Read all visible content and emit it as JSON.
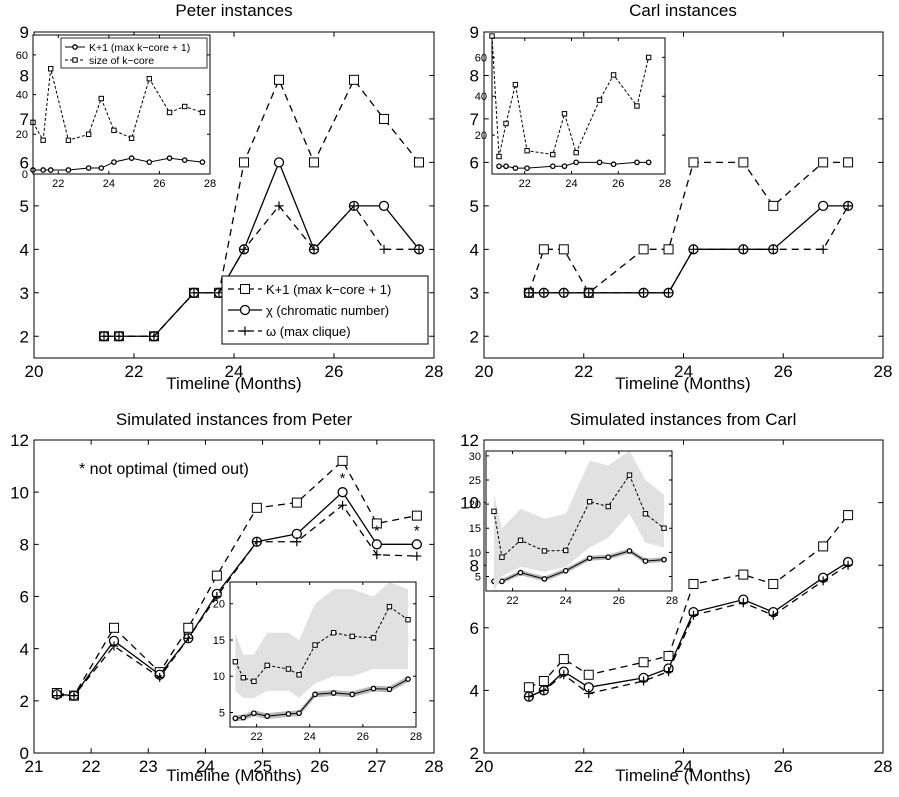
{
  "chart_data": [
    {
      "type": "line",
      "title": "Peter instances",
      "xlabel": "Timeline (Months)",
      "ylabel": "",
      "xlim": [
        20,
        28
      ],
      "ylim": [
        1.5,
        9
      ],
      "xticks": [
        20,
        22,
        24,
        26,
        28
      ],
      "yticks": [
        2,
        3,
        4,
        5,
        6,
        7,
        8,
        9
      ],
      "legend": {
        "position": "bottom-right",
        "entries": [
          "K+1 (max k−core + 1)",
          "χ (chromatic number)",
          "ω (max clique)"
        ]
      },
      "series": [
        {
          "name": "K+1 (max k−core + 1)",
          "style": "dashed",
          "marker": "square",
          "x": [
            21.4,
            21.7,
            22.4,
            23.2,
            23.7,
            24.2,
            24.9,
            25.6,
            26.4,
            27.0,
            27.7
          ],
          "y": [
            2,
            2,
            2,
            3,
            3,
            6,
            7.9,
            6,
            7.9,
            7,
            6
          ]
        },
        {
          "name": "χ (chromatic number)",
          "style": "solid",
          "marker": "circle",
          "x": [
            21.4,
            21.7,
            22.4,
            23.2,
            23.7,
            24.2,
            24.9,
            25.6,
            26.4,
            27.0,
            27.7
          ],
          "y": [
            2,
            2,
            2,
            3,
            3,
            4,
            6,
            4,
            5,
            5,
            4
          ]
        },
        {
          "name": "ω (max clique)",
          "style": "dashed",
          "marker": "plus",
          "x": [
            21.4,
            21.7,
            22.4,
            23.2,
            23.7,
            24.2,
            24.9,
            25.6,
            26.4,
            27.0,
            27.7
          ],
          "y": [
            2,
            2,
            2,
            3,
            3,
            4,
            5,
            4,
            5,
            4,
            4
          ]
        }
      ],
      "inset": {
        "xlim": [
          21,
          28
        ],
        "ylim": [
          0,
          70
        ],
        "xticks": [
          22,
          24,
          26,
          28
        ],
        "yticks": [
          0,
          20,
          40,
          60
        ],
        "legend": [
          "K+1 (max k−core + 1)",
          "size of k−core"
        ],
        "series": [
          {
            "name": "K+1 (max k−core + 1)",
            "style": "solid",
            "marker": "circle",
            "x": [
              21,
              21.4,
              21.7,
              22.4,
              23.2,
              23.7,
              24.2,
              24.9,
              25.6,
              26.4,
              27.0,
              27.7
            ],
            "y": [
              2,
              2,
              2,
              2,
              3,
              3,
              6,
              8,
              6,
              8,
              7,
              6
            ]
          },
          {
            "name": "size of k−core",
            "style": "dashed",
            "marker": "square",
            "x": [
              21,
              21.4,
              21.7,
              22.4,
              23.2,
              23.7,
              24.2,
              24.9,
              25.6,
              26.4,
              27.0,
              27.7
            ],
            "y": [
              26,
              17,
              53,
              17,
              20,
              38,
              22,
              18,
              48,
              31,
              34,
              31
            ]
          }
        ]
      }
    },
    {
      "type": "line",
      "title": "Carl instances",
      "xlabel": "Timeline (Months)",
      "ylabel": "",
      "xlim": [
        20,
        28
      ],
      "ylim": [
        1.5,
        9
      ],
      "xticks": [
        20,
        22,
        24,
        26,
        28
      ],
      "yticks": [
        2,
        3,
        4,
        5,
        6,
        7,
        8,
        9
      ],
      "series": [
        {
          "name": "K+1 (max k−core + 1)",
          "style": "dashed",
          "marker": "square",
          "x": [
            20.9,
            21.2,
            21.6,
            22.1,
            23.2,
            23.7,
            24.2,
            25.2,
            25.8,
            26.8,
            27.3
          ],
          "y": [
            3,
            4,
            4,
            3,
            4,
            4,
            6,
            6,
            5,
            6,
            6
          ]
        },
        {
          "name": "χ (chromatic number)",
          "style": "solid",
          "marker": "circle",
          "x": [
            20.9,
            21.2,
            21.6,
            22.1,
            23.2,
            23.7,
            24.2,
            25.2,
            25.8,
            26.8,
            27.3
          ],
          "y": [
            3,
            3,
            3,
            3,
            3,
            3,
            4,
            4,
            4,
            5,
            5
          ]
        },
        {
          "name": "ω (max clique)",
          "style": "dashed",
          "marker": "plus",
          "x": [
            20.9,
            21.2,
            21.6,
            22.1,
            23.2,
            23.7,
            24.2,
            25.2,
            25.8,
            26.8,
            27.3
          ],
          "y": [
            3,
            3,
            3,
            3,
            3,
            3,
            4,
            4,
            4,
            4,
            5
          ]
        }
      ],
      "inset": {
        "xlim": [
          20.6,
          28
        ],
        "ylim": [
          0,
          70
        ],
        "xticks": [
          22,
          24,
          26,
          28
        ],
        "yticks": [
          20,
          40,
          60
        ],
        "series": [
          {
            "name": "K+1 (max k−core + 1)",
            "style": "solid",
            "marker": "circle",
            "x": [
              20.9,
              21.2,
              21.6,
              22.1,
              23.2,
              23.7,
              24.2,
              25.2,
              25.8,
              26.8,
              27.3
            ],
            "y": [
              4,
              4,
              3,
              3,
              4,
              4,
              6,
              6,
              5,
              6,
              6
            ]
          },
          {
            "name": "size of k−core",
            "style": "dashed",
            "marker": "square",
            "x": [
              20.6,
              20.9,
              21.2,
              21.6,
              22.1,
              23.2,
              23.7,
              24.2,
              25.2,
              25.8,
              26.8,
              27.3
            ],
            "y": [
              71,
              9,
              26,
              46,
              12,
              10,
              31,
              11,
              38,
              51,
              35,
              60
            ]
          }
        ]
      }
    },
    {
      "type": "line",
      "title": "Simulated instances from Peter",
      "xlabel": "Timeline (Months)",
      "ylabel": "",
      "xlim": [
        21,
        28
      ],
      "ylim": [
        0,
        12
      ],
      "xticks": [
        21,
        22,
        23,
        24,
        25,
        26,
        27,
        28
      ],
      "yticks": [
        0,
        2,
        4,
        6,
        8,
        10,
        12
      ],
      "annotation": "* not optimal (timed out)",
      "series": [
        {
          "name": "K+1 (max k−core + 1)",
          "style": "dashed",
          "marker": "square",
          "x": [
            21.4,
            21.7,
            22.4,
            23.2,
            23.7,
            24.2,
            24.9,
            25.6,
            26.4,
            27.0,
            27.7
          ],
          "y": [
            2.3,
            2.2,
            4.8,
            3.1,
            4.8,
            6.8,
            9.4,
            9.6,
            11.2,
            8.8,
            9.1
          ]
        },
        {
          "name": "χ (chromatic number)",
          "style": "solid",
          "marker": "circle",
          "x": [
            21.4,
            21.7,
            22.4,
            23.2,
            23.7,
            24.2,
            24.9,
            25.6,
            26.4,
            27.0,
            27.7
          ],
          "y": [
            2.25,
            2.2,
            4.3,
            3.0,
            4.4,
            6.1,
            8.1,
            8.4,
            10.0,
            8.0,
            8.0
          ]
        },
        {
          "name": "ω (max clique)",
          "style": "dashed",
          "marker": "plus",
          "x": [
            21.4,
            21.7,
            22.4,
            23.2,
            23.7,
            24.2,
            24.9,
            25.6,
            26.4,
            27.0,
            27.7
          ],
          "y": [
            2.2,
            2.2,
            4.1,
            2.9,
            4.4,
            6.0,
            8.1,
            8.1,
            9.5,
            7.6,
            7.55
          ]
        }
      ],
      "not_optimal_markers": [
        {
          "x": 26.4,
          "label": "*"
        },
        {
          "x": 27.0,
          "label": "*"
        },
        {
          "x": 27.7,
          "label": "*"
        }
      ],
      "inset": {
        "xlim": [
          21,
          28
        ],
        "ylim": [
          3,
          23
        ],
        "xticks": [
          22,
          24,
          26,
          28
        ],
        "yticks": [
          5,
          10,
          15,
          20
        ],
        "series": [
          {
            "name": "K+1 (max k−core + 1)",
            "style": "solid",
            "marker": "circle",
            "band": 0.4,
            "x": [
              21.2,
              21.5,
              21.9,
              22.4,
              23.2,
              23.6,
              24.2,
              24.9,
              25.6,
              26.4,
              27.0,
              27.7
            ],
            "y": [
              4.2,
              4.3,
              4.9,
              4.5,
              4.8,
              4.9,
              7.5,
              7.7,
              7.5,
              8.3,
              8.2,
              9.6
            ]
          },
          {
            "name": "size of k−core",
            "style": "dashed",
            "marker": "square",
            "x": [
              21.2,
              21.5,
              21.9,
              22.4,
              23.2,
              23.6,
              24.2,
              24.9,
              25.6,
              26.4,
              27.0,
              27.7
            ],
            "y": [
              12.0,
              9.8,
              9.3,
              11.5,
              11.0,
              10.2,
              14.3,
              16.0,
              15.5,
              15.3,
              19.6,
              17.8
            ],
            "band_lower": [
              8,
              7,
              7,
              8,
              8,
              7,
              9,
              10,
              10,
              11,
              11,
              11
            ],
            "band_upper": [
              16,
              13,
              13,
              16,
              16,
              15,
              20,
              22,
              22,
              21,
              23,
              22
            ]
          }
        ]
      }
    },
    {
      "type": "line",
      "title": "Simulated instances from Carl",
      "xlabel": "Timeline (Months)",
      "ylabel": "",
      "xlim": [
        20,
        28
      ],
      "ylim": [
        2,
        12
      ],
      "xticks": [
        20,
        22,
        24,
        26,
        28
      ],
      "yticks": [
        2,
        4,
        6,
        8,
        10,
        12
      ],
      "series": [
        {
          "name": "K+1 (max k−core + 1)",
          "style": "dashed",
          "marker": "square",
          "x": [
            20.9,
            21.2,
            21.6,
            22.1,
            23.2,
            23.7,
            24.2,
            25.2,
            25.8,
            26.8,
            27.3
          ],
          "y": [
            4.1,
            4.3,
            5.0,
            4.5,
            4.9,
            5.1,
            7.4,
            7.7,
            7.4,
            8.6,
            9.6
          ]
        },
        {
          "name": "χ (chromatic number)",
          "style": "solid",
          "marker": "circle",
          "x": [
            20.9,
            21.2,
            21.6,
            22.1,
            23.2,
            23.7,
            24.2,
            25.2,
            25.8,
            26.8,
            27.3
          ],
          "y": [
            3.8,
            4.0,
            4.6,
            4.1,
            4.4,
            4.7,
            6.5,
            6.9,
            6.5,
            7.6,
            8.1
          ]
        },
        {
          "name": "ω (max clique)",
          "style": "dashed",
          "marker": "plus",
          "x": [
            20.9,
            21.2,
            21.6,
            22.1,
            23.2,
            23.7,
            24.2,
            25.2,
            25.8,
            26.8,
            27.3
          ],
          "y": [
            3.8,
            4.0,
            4.5,
            3.9,
            4.3,
            4.6,
            6.4,
            6.8,
            6.4,
            7.5,
            8.0
          ]
        }
      ],
      "inset": {
        "xlim": [
          21,
          28
        ],
        "ylim": [
          2,
          31
        ],
        "xticks": [
          22,
          24,
          26,
          28
        ],
        "yticks": [
          5,
          10,
          15,
          20,
          25,
          30
        ],
        "series": [
          {
            "name": "K+1 (max k−core + 1)",
            "style": "solid",
            "marker": "circle",
            "band": 0.5,
            "x": [
              21.3,
              21.6,
              22.3,
              23.2,
              24.0,
              24.9,
              25.6,
              26.4,
              27.0,
              27.7
            ],
            "y": [
              4.0,
              4.0,
              5.8,
              4.5,
              6.2,
              8.8,
              9.0,
              10.3,
              8.2,
              8.5
            ]
          },
          {
            "name": "size of k−core",
            "style": "dashed",
            "marker": "square",
            "x": [
              21.3,
              21.6,
              22.3,
              23.2,
              24.0,
              24.9,
              25.6,
              26.4,
              27.0,
              27.7
            ],
            "y": [
              18.5,
              9.0,
              12.5,
              10.3,
              10.4,
              20.5,
              19.5,
              26.0,
              18.0,
              15.0
            ],
            "band_lower": [
              2,
              5,
              7,
              6,
              7,
              11,
              13,
              18,
              12,
              11
            ],
            "band_upper": [
              22,
              15,
              19,
              17,
              18,
              29,
              28,
              31,
              25,
              22
            ]
          }
        ]
      }
    }
  ]
}
